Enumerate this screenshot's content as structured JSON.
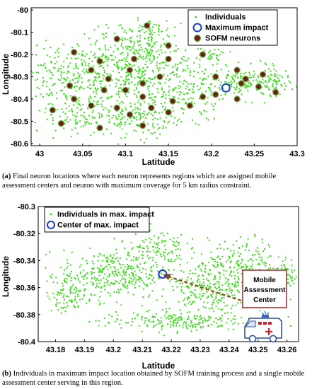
{
  "chart_data": [
    {
      "type": "scatter",
      "panel_label": "(a)",
      "caption": "Final neuron locations where each neuron represents regions which are assigned mobile assessment centers and neuron with maximum coverage for 5 km radius constraint.",
      "xlabel": "Latitude",
      "ylabel": "Longitude",
      "xlim": [
        42.99,
        43.3
      ],
      "ylim": [
        -80.61,
        -79.99
      ],
      "xticks": [
        43,
        43.05,
        43.1,
        43.15,
        43.2,
        43.25,
        43.3
      ],
      "yticks": [
        -80,
        -80.1,
        -80.2,
        -80.3,
        -80.4,
        -80.5,
        -80.6
      ],
      "xtick_labels": [
        "43",
        "43.05",
        "43.1",
        "43.15",
        "43.2",
        "43.25",
        "43.3"
      ],
      "ytick_labels": [
        "-80",
        "-80.1",
        "-80.2",
        "-80.3",
        "-80.4",
        "-80.5",
        "-80.6"
      ],
      "legend_position": "top-right",
      "legend": [
        "Individuals",
        "Maximum impact",
        "SOFM neurons"
      ],
      "colors": {
        "individuals": "#33dd11",
        "maximum_impact": "#1f3fcf",
        "neuron_fill": "#6b1e12",
        "neuron_ring": "#6ab04a"
      },
      "maximum_impact": {
        "x": 43.217,
        "y": -80.35
      },
      "neurons": [
        [
          43.125,
          -80.07
        ],
        [
          43.09,
          -80.13
        ],
        [
          43.15,
          -80.16
        ],
        [
          43.19,
          -80.2
        ],
        [
          43.04,
          -80.19
        ],
        [
          43.07,
          -80.23
        ],
        [
          43.11,
          -80.22
        ],
        [
          43.15,
          -80.22
        ],
        [
          43.105,
          -80.27
        ],
        [
          43.06,
          -80.27
        ],
        [
          43.14,
          -80.3
        ],
        [
          43.08,
          -80.31
        ],
        [
          43.12,
          -80.33
        ],
        [
          43.035,
          -80.34
        ],
        [
          43.075,
          -80.36
        ],
        [
          43.1,
          -80.36
        ],
        [
          43.12,
          -80.39
        ],
        [
          43.155,
          -80.41
        ],
        [
          43.04,
          -80.4
        ],
        [
          43.06,
          -80.43
        ],
        [
          43.09,
          -80.44
        ],
        [
          43.13,
          -80.44
        ],
        [
          43.19,
          -80.39
        ],
        [
          43.175,
          -80.43
        ],
        [
          43.015,
          -80.45
        ],
        [
          43.105,
          -80.47
        ],
        [
          43.15,
          -80.46
        ],
        [
          43.07,
          -80.53
        ],
        [
          43.12,
          -80.52
        ],
        [
          43.025,
          -80.51
        ],
        [
          43.205,
          -80.3
        ],
        [
          43.23,
          -80.27
        ],
        [
          43.24,
          -80.31
        ],
        [
          43.26,
          -80.29
        ],
        [
          43.235,
          -80.33
        ],
        [
          43.255,
          -80.345
        ],
        [
          43.205,
          -80.38
        ],
        [
          43.275,
          -80.37
        ],
        [
          43.23,
          -80.4
        ]
      ],
      "individual_regions": [
        [
          43.02,
          -80.3,
          0.04,
          0.13,
          130
        ],
        [
          43.07,
          -80.3,
          0.055,
          0.2,
          260
        ],
        [
          43.12,
          -80.33,
          0.055,
          0.22,
          280
        ],
        [
          43.17,
          -80.35,
          0.045,
          0.15,
          170
        ],
        [
          43.12,
          -80.18,
          0.045,
          0.1,
          120
        ],
        [
          43.125,
          -80.09,
          0.03,
          0.05,
          50
        ],
        [
          43.05,
          -80.49,
          0.05,
          0.06,
          90
        ],
        [
          43.12,
          -80.5,
          0.045,
          0.07,
          80
        ],
        [
          43.24,
          -80.33,
          0.04,
          0.07,
          160
        ],
        [
          43.275,
          -80.32,
          0.015,
          0.06,
          50
        ],
        [
          43.2,
          -80.2,
          0.02,
          0.03,
          30
        ]
      ]
    },
    {
      "type": "scatter",
      "panel_label": "(b)",
      "caption": "Individuals in maximum impact location obtained by SOFM training process and a single mobile assessment center serving in this region.",
      "xlabel": "Latitude",
      "ylabel": "Longitude",
      "xlim": [
        43.174,
        43.264
      ],
      "ylim": [
        -80.4,
        -80.3
      ],
      "xticks": [
        43.18,
        43.19,
        43.2,
        43.21,
        43.22,
        43.23,
        43.24,
        43.25,
        43.26
      ],
      "yticks": [
        -80.3,
        -80.32,
        -80.34,
        -80.36,
        -80.38,
        -80.4
      ],
      "xtick_labels": [
        "43.18",
        "43.19",
        "43.2",
        "43.21",
        "43.22",
        "43.23",
        "43.24",
        "43.25",
        "43.26"
      ],
      "ytick_labels": [
        "-80.3",
        "-80.32",
        "-80.34",
        "-80.36",
        "-80.38",
        "-80.4"
      ],
      "legend_position": "top-left",
      "legend": [
        "Individuals in max. impact",
        "Center of max. impact"
      ],
      "colors": {
        "individuals": "#33dd11",
        "center": "#1f3fcf",
        "arrow": "#8a4a1a",
        "box_border": "#9b2a2a"
      },
      "center": {
        "x": 43.217,
        "y": -80.35
      },
      "annotation": {
        "lines": [
          "Mobile",
          "Assessment",
          "Center"
        ]
      },
      "individual_regions": [
        [
          43.2,
          -80.35,
          0.018,
          0.018,
          350
        ],
        [
          43.235,
          -80.36,
          0.018,
          0.02,
          330
        ],
        [
          43.22,
          -80.385,
          0.025,
          0.007,
          200
        ],
        [
          43.245,
          -80.34,
          0.012,
          0.016,
          150
        ],
        [
          43.185,
          -80.365,
          0.008,
          0.014,
          90
        ],
        [
          43.215,
          -80.33,
          0.01,
          0.014,
          110
        ],
        [
          43.26,
          -80.35,
          0.004,
          0.012,
          50
        ]
      ]
    }
  ]
}
